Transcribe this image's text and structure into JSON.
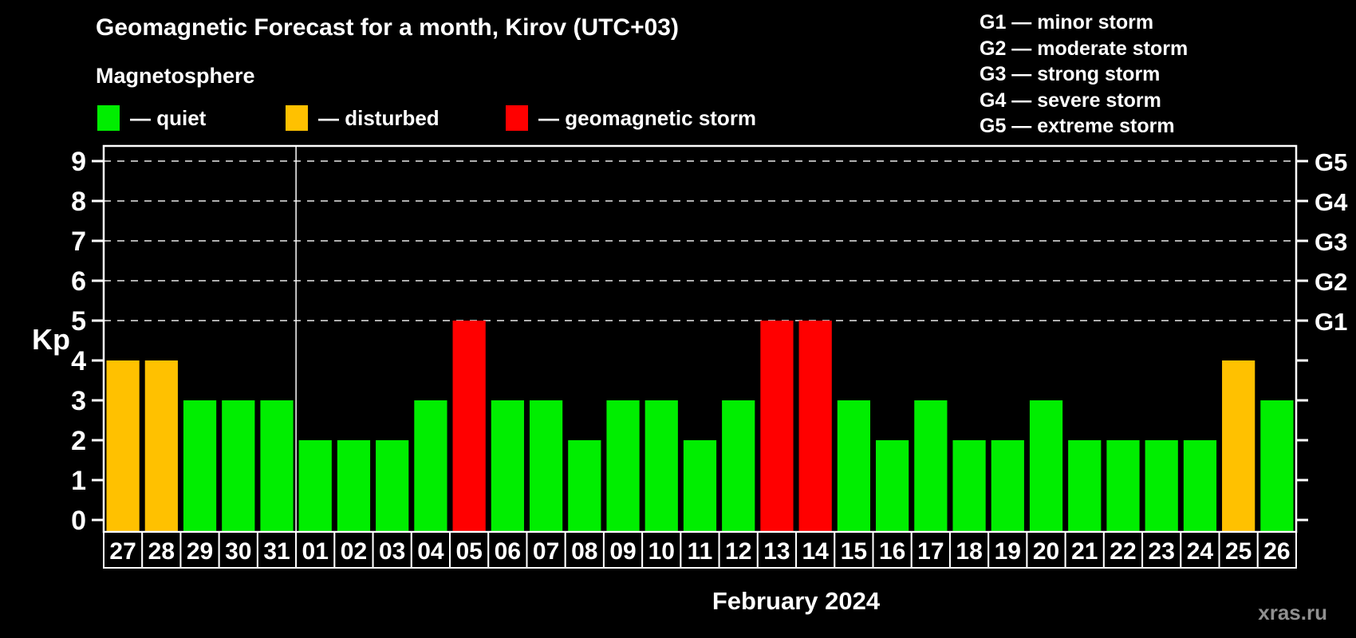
{
  "header": {
    "title": "Geomagnetic Forecast for a month, Kirov (UTC+03)",
    "subtitle": "Magnetosphere",
    "legend": [
      {
        "key": "quiet",
        "label": "— quiet",
        "color": "#00ee00"
      },
      {
        "key": "disturbed",
        "label": "— disturbed",
        "color": "#ffc100"
      },
      {
        "key": "storm",
        "label": "— geomagnetic storm",
        "color": "#ff0000"
      }
    ],
    "g_scale_legend": [
      "G1 — minor storm",
      "G2 — moderate storm",
      "G3 — strong storm",
      "G4 — severe storm",
      "G5 — extreme storm"
    ]
  },
  "chart_data": {
    "type": "bar",
    "title": "Geomagnetic Forecast for a month, Kirov (UTC+03)",
    "ylabel": "Kp",
    "xlabel": "February 2024",
    "ylim": [
      0,
      9
    ],
    "yticks": [
      0,
      1,
      2,
      3,
      4,
      5,
      6,
      7,
      8,
      9
    ],
    "gridlines_at": [
      5,
      6,
      7,
      8,
      9
    ],
    "grid": "dashed",
    "legend_position": "top-left",
    "right_axis_labels": [
      {
        "value": 5,
        "label": "G1"
      },
      {
        "value": 6,
        "label": "G2"
      },
      {
        "value": 7,
        "label": "G3"
      },
      {
        "value": 8,
        "label": "G4"
      },
      {
        "value": 9,
        "label": "G5"
      }
    ],
    "categories": [
      "27",
      "28",
      "29",
      "30",
      "31",
      "01",
      "02",
      "03",
      "04",
      "05",
      "06",
      "07",
      "08",
      "09",
      "10",
      "11",
      "12",
      "13",
      "14",
      "15",
      "16",
      "17",
      "18",
      "19",
      "20",
      "21",
      "22",
      "23",
      "24",
      "25",
      "26"
    ],
    "values": [
      4,
      4,
      3,
      3,
      3,
      2,
      2,
      2,
      3,
      5,
      3,
      3,
      2,
      3,
      3,
      2,
      3,
      5,
      5,
      3,
      2,
      3,
      2,
      2,
      3,
      2,
      2,
      2,
      2,
      4,
      3
    ],
    "statuses": [
      "disturbed",
      "disturbed",
      "quiet",
      "quiet",
      "quiet",
      "quiet",
      "quiet",
      "quiet",
      "quiet",
      "storm",
      "quiet",
      "quiet",
      "quiet",
      "quiet",
      "quiet",
      "quiet",
      "quiet",
      "storm",
      "storm",
      "quiet",
      "quiet",
      "quiet",
      "quiet",
      "quiet",
      "quiet",
      "quiet",
      "quiet",
      "quiet",
      "quiet",
      "disturbed",
      "quiet"
    ],
    "status_colors": {
      "quiet": "#00ee00",
      "disturbed": "#ffc100",
      "storm": "#ff0000"
    },
    "month_separator_index": 5,
    "colors": {
      "background": "#000000",
      "axis": "#ffffff",
      "gridline": "#b0b0b0",
      "text": "#ffffff",
      "watermark": "#909090"
    }
  },
  "footer": {
    "watermark": "xras.ru"
  }
}
